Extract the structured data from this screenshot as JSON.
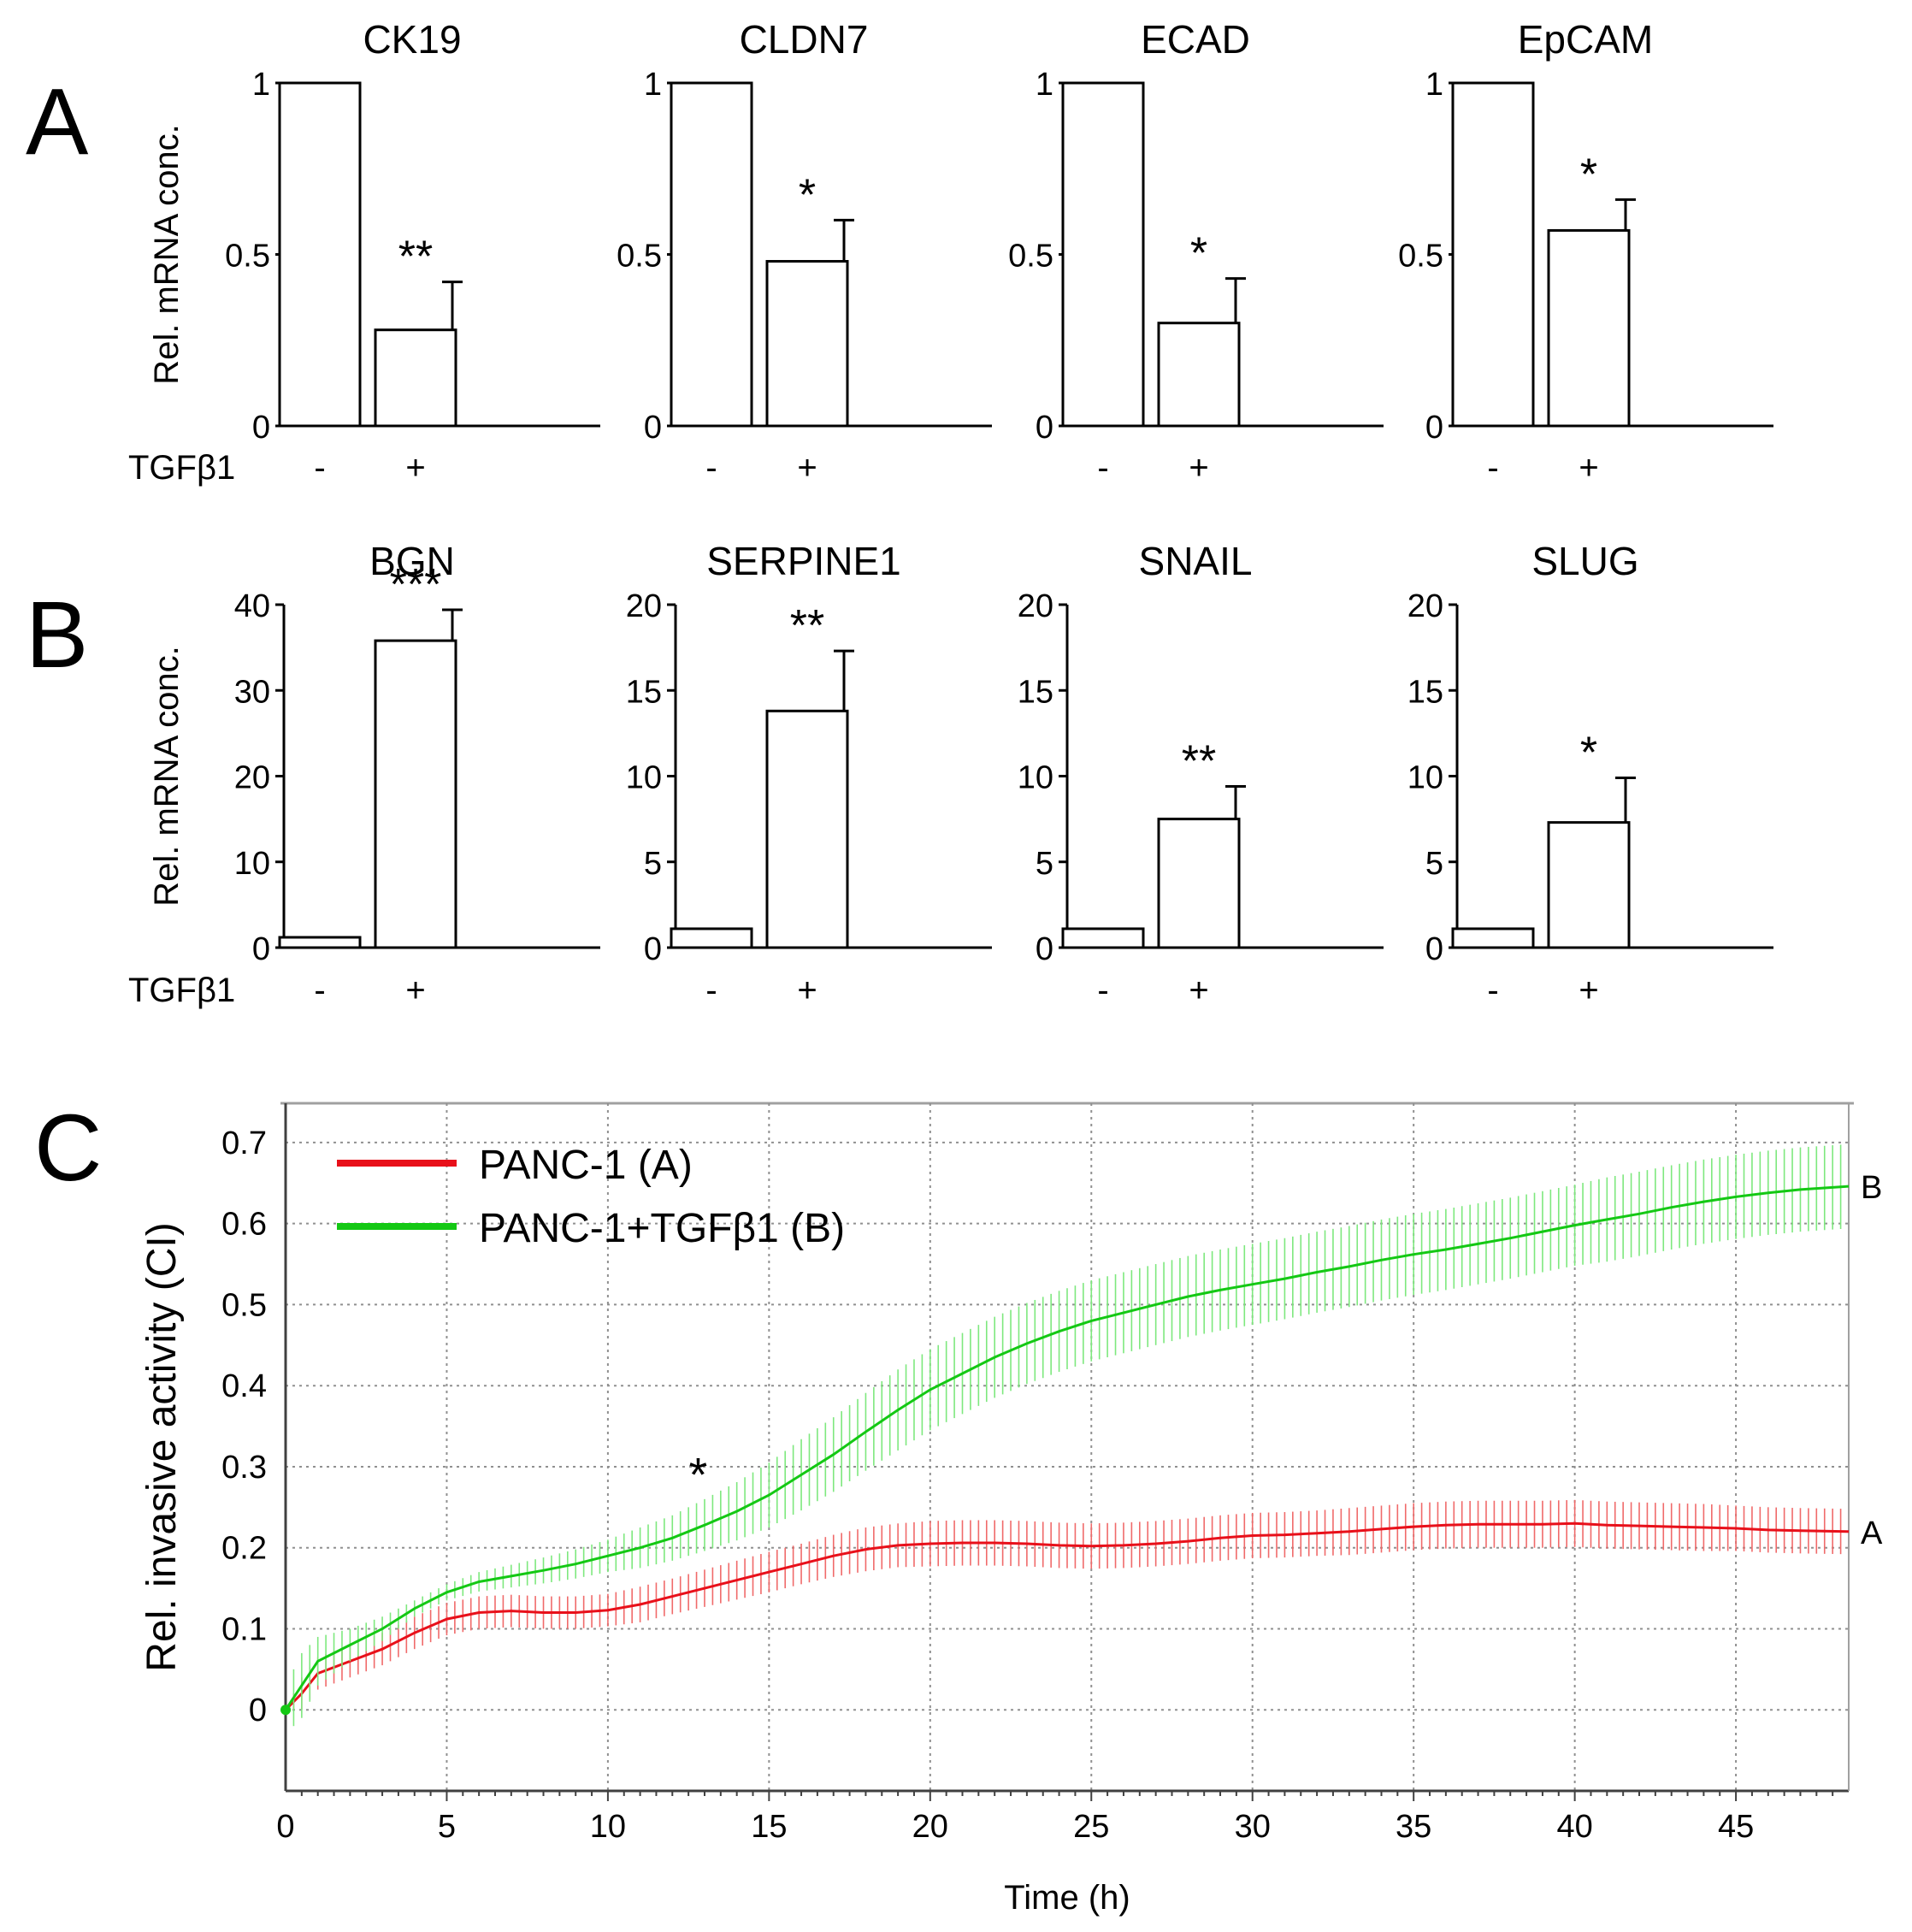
{
  "colors": {
    "series_a": "#e8101a",
    "series_b": "#14c814",
    "axis": "#000000",
    "grid": "#909090",
    "bar_fill": "#ffffff"
  },
  "chart_data": [
    {
      "id": "A",
      "type": "bar",
      "panel_label": "A",
      "ylabel": "Rel. mRNA conc.",
      "xlabel": "TGFβ1",
      "categories": [
        "-",
        "+"
      ],
      "charts": [
        {
          "title": "CK19",
          "ylim": [
            0,
            1
          ],
          "yticks": [
            "0",
            "0.5",
            "1"
          ],
          "values": [
            1.0,
            0.28
          ],
          "errors": [
            0,
            0.14
          ],
          "significance": "**"
        },
        {
          "title": "CLDN7",
          "ylim": [
            0,
            1
          ],
          "yticks": [
            "0",
            "0.5",
            "1"
          ],
          "values": [
            1.0,
            0.48
          ],
          "errors": [
            0,
            0.12
          ],
          "significance": "*"
        },
        {
          "title": "ECAD",
          "ylim": [
            0,
            1
          ],
          "yticks": [
            "0",
            "0.5",
            "1"
          ],
          "values": [
            1.0,
            0.3
          ],
          "errors": [
            0,
            0.13
          ],
          "significance": "*"
        },
        {
          "title": "EpCAM",
          "ylim": [
            0,
            1
          ],
          "yticks": [
            "0",
            "0.5",
            "1"
          ],
          "values": [
            1.0,
            0.57
          ],
          "errors": [
            0,
            0.09
          ],
          "significance": "*"
        }
      ]
    },
    {
      "id": "B",
      "type": "bar",
      "panel_label": "B",
      "ylabel": "Rel. mRNA conc.",
      "xlabel": "TGFβ1",
      "categories": [
        "-",
        "+"
      ],
      "charts": [
        {
          "title": "BGN",
          "ylim": [
            0,
            40
          ],
          "yticks": [
            "0",
            "10",
            "20",
            "30",
            "40"
          ],
          "values": [
            1.2,
            35.8
          ],
          "errors": [
            0,
            3.6
          ],
          "significance": "***"
        },
        {
          "title": "SERPINE1",
          "ylim": [
            0,
            20
          ],
          "yticks": [
            "0",
            "5",
            "10",
            "15",
            "20"
          ],
          "values": [
            1.1,
            13.8
          ],
          "errors": [
            0,
            3.5
          ],
          "significance": "**"
        },
        {
          "title": "SNAIL",
          "ylim": [
            0,
            20
          ],
          "yticks": [
            "0",
            "5",
            "10",
            "15",
            "20"
          ],
          "values": [
            1.1,
            7.5
          ],
          "errors": [
            0,
            1.9
          ],
          "significance": "**"
        },
        {
          "title": "SLUG",
          "ylim": [
            0,
            20
          ],
          "yticks": [
            "0",
            "5",
            "10",
            "15",
            "20"
          ],
          "values": [
            1.1,
            7.3
          ],
          "errors": [
            0,
            2.6
          ],
          "significance": "*"
        }
      ]
    },
    {
      "id": "C",
      "type": "line",
      "panel_label": "C",
      "xlabel": "Time (h)",
      "ylabel": "Rel. invasive activity (CI)",
      "xlim": [
        0,
        48.5
      ],
      "ylim": [
        -0.1,
        0.74
      ],
      "xticks": [
        "0",
        "5",
        "10",
        "15",
        "20",
        "25",
        "30",
        "35",
        "40",
        "45"
      ],
      "yticks": [
        "0",
        "0.1",
        "0.2",
        "0.3",
        "0.4",
        "0.5",
        "0.6",
        "0.7"
      ],
      "grid": true,
      "annotation": {
        "text": "*",
        "x": 12.8,
        "y": 0.295
      },
      "series": [
        {
          "name": "PANC-1 (A)",
          "end_label": "A",
          "color": "#e8101a",
          "x": [
            0,
            0.5,
            1,
            2,
            3,
            4,
            5,
            6,
            7,
            8,
            9,
            10,
            11,
            12,
            13,
            14,
            15,
            16,
            17,
            18,
            19,
            20,
            21,
            22,
            23,
            24,
            25,
            26,
            27,
            28,
            29,
            30,
            31,
            32,
            33,
            34,
            35,
            36,
            37,
            38,
            39,
            40,
            41,
            42,
            43,
            44,
            45,
            46,
            47,
            48.5
          ],
          "y": [
            0,
            0.02,
            0.045,
            0.06,
            0.075,
            0.095,
            0.112,
            0.12,
            0.122,
            0.12,
            0.12,
            0.123,
            0.13,
            0.14,
            0.15,
            0.16,
            0.17,
            0.18,
            0.19,
            0.198,
            0.203,
            0.205,
            0.206,
            0.206,
            0.205,
            0.203,
            0.202,
            0.203,
            0.205,
            0.208,
            0.212,
            0.215,
            0.216,
            0.218,
            0.22,
            0.223,
            0.226,
            0.228,
            0.229,
            0.229,
            0.229,
            0.23,
            0.228,
            0.227,
            0.226,
            0.225,
            0.224,
            0.222,
            0.221,
            0.22
          ],
          "err": [
            0,
            0.02,
            0.02,
            0.02,
            0.02,
            0.02,
            0.02,
            0.02,
            0.02,
            0.02,
            0.02,
            0.02,
            0.022,
            0.022,
            0.023,
            0.024,
            0.025,
            0.025,
            0.026,
            0.027,
            0.027,
            0.028,
            0.028,
            0.028,
            0.028,
            0.028,
            0.028,
            0.028,
            0.028,
            0.028,
            0.028,
            0.028,
            0.028,
            0.028,
            0.029,
            0.029,
            0.029,
            0.029,
            0.029,
            0.029,
            0.029,
            0.029,
            0.029,
            0.029,
            0.029,
            0.029,
            0.028,
            0.028,
            0.028,
            0.028
          ]
        },
        {
          "name": "PANC-1+TGFβ1 (B)",
          "end_label": "B",
          "color": "#14c814",
          "x": [
            0,
            0.5,
            1,
            2,
            3,
            4,
            5,
            6,
            7,
            8,
            9,
            10,
            11,
            12,
            13,
            14,
            15,
            16,
            17,
            18,
            19,
            20,
            21,
            22,
            23,
            24,
            25,
            26,
            27,
            28,
            29,
            30,
            31,
            32,
            33,
            34,
            35,
            36,
            37,
            38,
            39,
            40,
            41,
            42,
            43,
            44,
            45,
            46,
            47,
            48.5
          ],
          "y": [
            0,
            0.03,
            0.06,
            0.08,
            0.1,
            0.125,
            0.145,
            0.158,
            0.165,
            0.172,
            0.18,
            0.19,
            0.2,
            0.212,
            0.228,
            0.245,
            0.265,
            0.29,
            0.315,
            0.343,
            0.37,
            0.395,
            0.415,
            0.435,
            0.452,
            0.467,
            0.48,
            0.49,
            0.5,
            0.51,
            0.518,
            0.525,
            0.532,
            0.54,
            0.547,
            0.555,
            0.562,
            0.568,
            0.575,
            0.582,
            0.59,
            0.598,
            0.605,
            0.612,
            0.62,
            0.627,
            0.633,
            0.638,
            0.642,
            0.646
          ],
          "err": [
            0.03,
            0.04,
            0.03,
            0.02,
            0.015,
            0.01,
            0.01,
            0.012,
            0.014,
            0.016,
            0.018,
            0.02,
            0.025,
            0.028,
            0.032,
            0.036,
            0.04,
            0.044,
            0.046,
            0.048,
            0.05,
            0.05,
            0.05,
            0.05,
            0.05,
            0.05,
            0.05,
            0.05,
            0.05,
            0.05,
            0.05,
            0.05,
            0.05,
            0.05,
            0.05,
            0.05,
            0.05,
            0.05,
            0.05,
            0.05,
            0.05,
            0.05,
            0.052,
            0.052,
            0.052,
            0.052,
            0.052,
            0.052,
            0.052,
            0.052
          ]
        }
      ]
    }
  ]
}
